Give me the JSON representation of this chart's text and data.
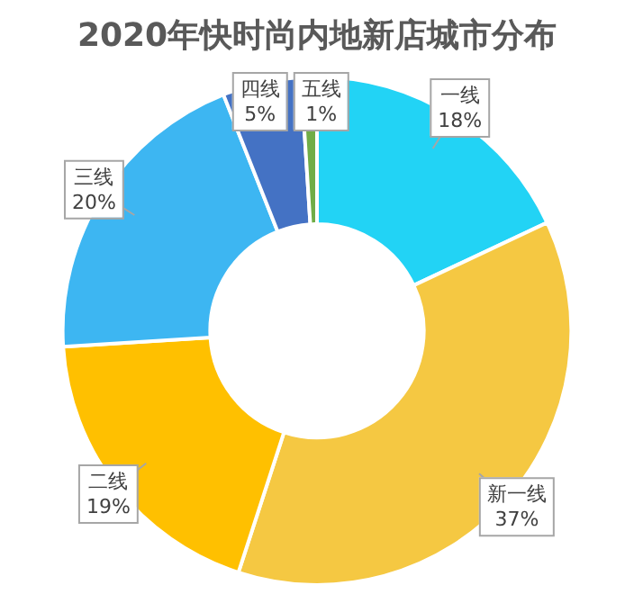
{
  "chart_data": {
    "type": "donut",
    "title": "2020年快时尚内地新店城市分布",
    "categories": [
      "一线",
      "新一线",
      "二线",
      "三线",
      "四线",
      "五线"
    ],
    "values": [
      18,
      37,
      19,
      20,
      5,
      1
    ],
    "colors": [
      "#22d3f5",
      "#f5c842",
      "#ffc000",
      "#3db6f2",
      "#4472c4",
      "#70ad47"
    ],
    "value_labels": [
      "18%",
      "37%",
      "19%",
      "20%",
      "5%",
      "1%"
    ],
    "legend": false
  }
}
